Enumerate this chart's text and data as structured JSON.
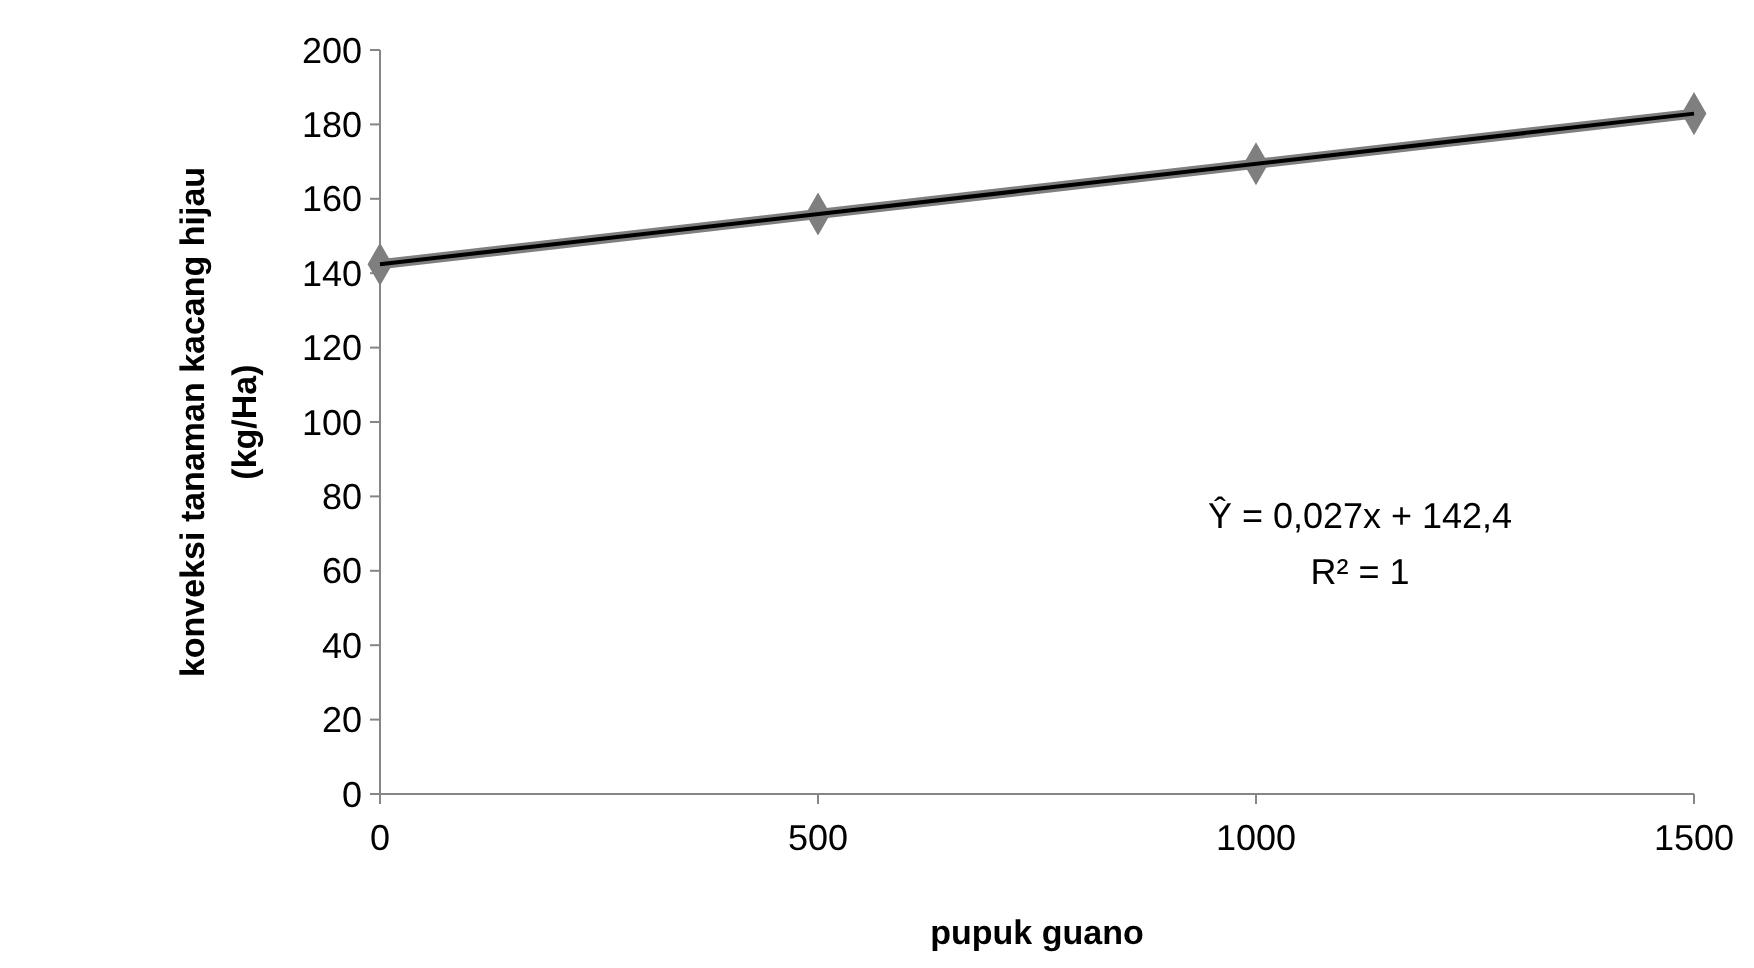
{
  "chart_data": {
    "type": "line",
    "xlabel": "pupuk guano",
    "ylabel": "konveksi tanaman kacang hijau\n(kg/Ha)",
    "x": [
      0,
      500,
      1000,
      1500
    ],
    "series": [
      {
        "color": "#7f7f7f",
        "values": [
          142.4,
          155.9,
          169.4,
          182.9
        ],
        "marker": "diamond"
      },
      {
        "type": "line",
        "color": "#000000",
        "x": [
          0,
          1500
        ],
        "values": [
          142.4,
          182.9
        ],
        "marker": "none"
      }
    ],
    "xlim": [
      0,
      1500
    ],
    "xticks": [
      0,
      500,
      1000,
      1500
    ],
    "ylim": [
      0,
      200
    ],
    "yticks": [
      0,
      20,
      40,
      60,
      80,
      100,
      120,
      140,
      160,
      180,
      200
    ],
    "grid": false,
    "annotations": [
      "Ŷ = 0,027x + 142,4",
      "R² = 1"
    ]
  }
}
